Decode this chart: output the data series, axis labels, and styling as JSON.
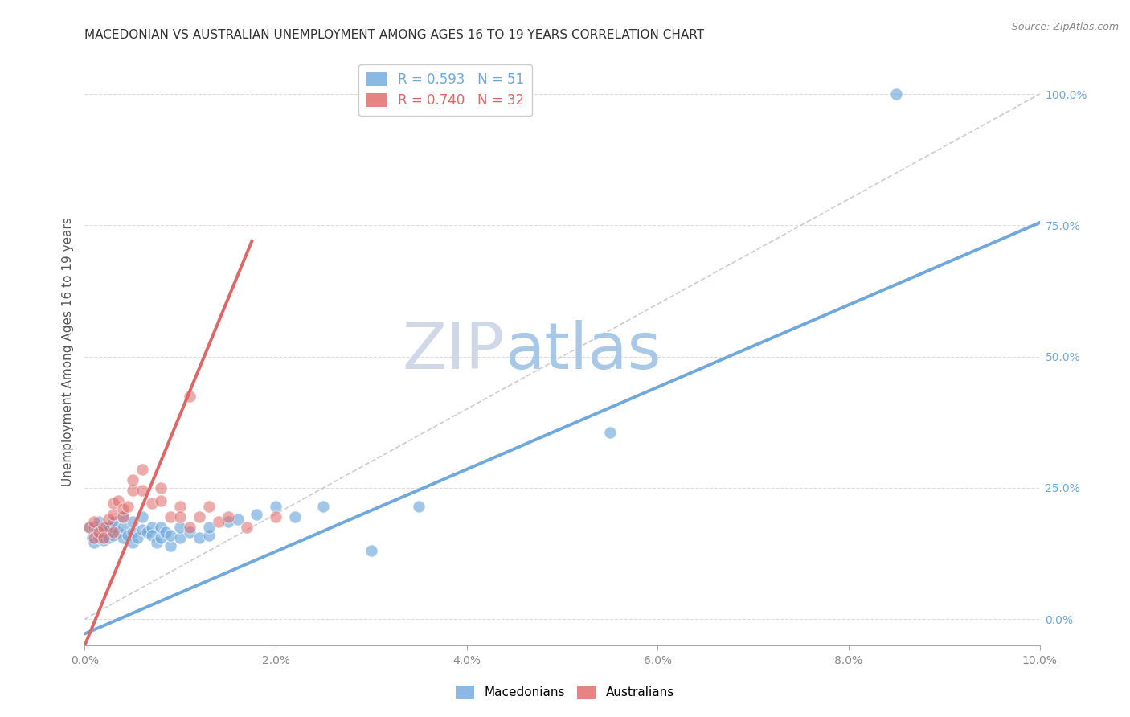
{
  "title": "MACEDONIAN VS AUSTRALIAN UNEMPLOYMENT AMONG AGES 16 TO 19 YEARS CORRELATION CHART",
  "source": "Source: ZipAtlas.com",
  "ylabel": "Unemployment Among Ages 16 to 19 years",
  "xlim": [
    0.0,
    0.1
  ],
  "ylim": [
    -0.05,
    1.07
  ],
  "xticks": [
    0.0,
    0.02,
    0.04,
    0.06,
    0.08,
    0.1
  ],
  "xticklabels": [
    "0.0%",
    "2.0%",
    "4.0%",
    "6.0%",
    "8.0%",
    "10.0%"
  ],
  "yticks_right": [
    0.0,
    0.25,
    0.5,
    0.75,
    1.0
  ],
  "yticklabels_right": [
    "0.0%",
    "25.0%",
    "50.0%",
    "75.0%",
    "100.0%"
  ],
  "macedonian_color": "#6fa8dc",
  "australian_color": "#e06666",
  "macedonian_R": 0.593,
  "macedonian_N": 51,
  "australian_R": 0.74,
  "australian_N": 32,
  "macedonian_scatter": [
    [
      0.0005,
      0.175
    ],
    [
      0.0008,
      0.155
    ],
    [
      0.001,
      0.145
    ],
    [
      0.001,
      0.175
    ],
    [
      0.0012,
      0.17
    ],
    [
      0.0015,
      0.155
    ],
    [
      0.0015,
      0.185
    ],
    [
      0.002,
      0.165
    ],
    [
      0.002,
      0.15
    ],
    [
      0.0022,
      0.175
    ],
    [
      0.0025,
      0.155
    ],
    [
      0.0025,
      0.175
    ],
    [
      0.003,
      0.16
    ],
    [
      0.003,
      0.175
    ],
    [
      0.003,
      0.185
    ],
    [
      0.0035,
      0.165
    ],
    [
      0.004,
      0.155
    ],
    [
      0.004,
      0.175
    ],
    [
      0.004,
      0.195
    ],
    [
      0.0045,
      0.16
    ],
    [
      0.005,
      0.145
    ],
    [
      0.005,
      0.165
    ],
    [
      0.005,
      0.185
    ],
    [
      0.0055,
      0.155
    ],
    [
      0.006,
      0.17
    ],
    [
      0.006,
      0.195
    ],
    [
      0.0065,
      0.165
    ],
    [
      0.007,
      0.175
    ],
    [
      0.007,
      0.16
    ],
    [
      0.0075,
      0.145
    ],
    [
      0.008,
      0.155
    ],
    [
      0.008,
      0.175
    ],
    [
      0.0085,
      0.165
    ],
    [
      0.009,
      0.14
    ],
    [
      0.009,
      0.16
    ],
    [
      0.01,
      0.155
    ],
    [
      0.01,
      0.175
    ],
    [
      0.011,
      0.165
    ],
    [
      0.012,
      0.155
    ],
    [
      0.013,
      0.16
    ],
    [
      0.013,
      0.175
    ],
    [
      0.015,
      0.185
    ],
    [
      0.016,
      0.19
    ],
    [
      0.018,
      0.2
    ],
    [
      0.02,
      0.215
    ],
    [
      0.022,
      0.195
    ],
    [
      0.025,
      0.215
    ],
    [
      0.03,
      0.13
    ],
    [
      0.035,
      0.215
    ],
    [
      0.055,
      0.355
    ],
    [
      0.085,
      1.0
    ]
  ],
  "australian_scatter": [
    [
      0.0005,
      0.175
    ],
    [
      0.001,
      0.155
    ],
    [
      0.001,
      0.185
    ],
    [
      0.0015,
      0.165
    ],
    [
      0.002,
      0.175
    ],
    [
      0.002,
      0.155
    ],
    [
      0.0025,
      0.19
    ],
    [
      0.003,
      0.165
    ],
    [
      0.003,
      0.2
    ],
    [
      0.003,
      0.22
    ],
    [
      0.0035,
      0.225
    ],
    [
      0.004,
      0.195
    ],
    [
      0.004,
      0.21
    ],
    [
      0.0045,
      0.215
    ],
    [
      0.005,
      0.245
    ],
    [
      0.005,
      0.265
    ],
    [
      0.006,
      0.245
    ],
    [
      0.006,
      0.285
    ],
    [
      0.007,
      0.22
    ],
    [
      0.008,
      0.225
    ],
    [
      0.008,
      0.25
    ],
    [
      0.009,
      0.195
    ],
    [
      0.01,
      0.215
    ],
    [
      0.01,
      0.195
    ],
    [
      0.011,
      0.175
    ],
    [
      0.011,
      0.425
    ],
    [
      0.012,
      0.195
    ],
    [
      0.013,
      0.215
    ],
    [
      0.014,
      0.185
    ],
    [
      0.015,
      0.195
    ],
    [
      0.017,
      0.175
    ],
    [
      0.02,
      0.195
    ]
  ],
  "macedonian_line_x": [
    0.0,
    0.1
  ],
  "macedonian_line_y": [
    -0.028,
    0.755
  ],
  "australian_line_x": [
    0.0,
    0.0175
  ],
  "australian_line_y": [
    -0.05,
    0.72
  ],
  "ref_line_x": [
    0.0,
    0.1
  ],
  "ref_line_y": [
    0.0,
    1.0
  ],
  "watermark_zip": "ZIP",
  "watermark_atlas": "atlas",
  "watermark_color_zip": "#d0d8e8",
  "watermark_color_atlas": "#a8c8e8",
  "grid_color": "#dddddd",
  "bg_color": "#ffffff"
}
